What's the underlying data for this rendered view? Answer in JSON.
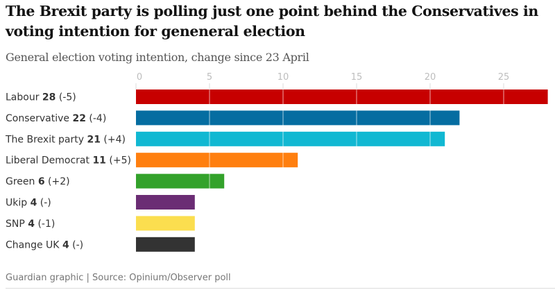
{
  "chart_data": {
    "type": "bar",
    "orientation": "horizontal",
    "title": "The Brexit party is polling just one point behind the Conservatives in voting intention for geneneral election",
    "subtitle": "General election voting intention, change since 23 April",
    "xlabel": "",
    "ylabel": "",
    "xlim": [
      0,
      28
    ],
    "xticks": [
      0,
      5,
      10,
      15,
      20,
      25
    ],
    "grid": true,
    "categories": [
      "Labour",
      "Conservative",
      "The Brexit party",
      "Liberal Democrat",
      "Green",
      "Ukip",
      "SNP",
      "Change UK"
    ],
    "values": [
      28,
      22,
      21,
      11,
      6,
      4,
      4,
      4
    ],
    "changes": [
      "(-5)",
      "(-4)",
      "(+4)",
      "(+5)",
      "(+2)",
      "(-)",
      "(-1)",
      "(-)"
    ],
    "colors": [
      "#c70000",
      "#056da1",
      "#11b8d2",
      "#ff7f0f",
      "#33a22b",
      "#6b2d74",
      "#fbde4f",
      "#333333"
    ],
    "footer": "Guardian graphic | Source: Opinium/Observer poll"
  }
}
